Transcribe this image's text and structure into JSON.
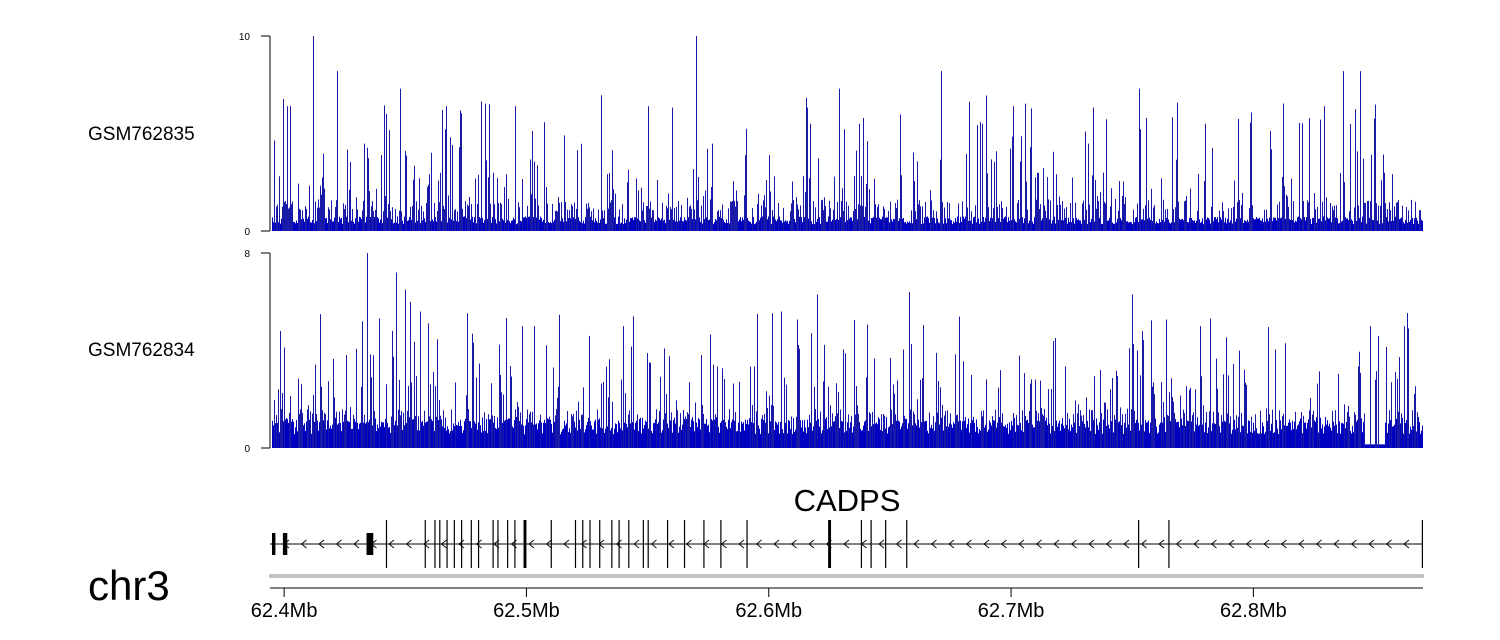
{
  "chart_data": {
    "type": "genome-browser",
    "chromosome": "chr3",
    "region": {
      "start_mb": 62.395,
      "end_mb": 62.87
    },
    "colors": {
      "signal": "#1a1aa8",
      "signal_edge": "#0000c0",
      "axis": "#000000",
      "gene": "#000000"
    },
    "tracks": [
      {
        "name": "GSM762835",
        "ylim": [
          0,
          10
        ],
        "yticks": [
          {
            "value": 10,
            "label": "10"
          },
          {
            "value": 0,
            "label": "0"
          }
        ],
        "seed": 762835,
        "baseline_level": 0.5,
        "peaks": [
          {
            "pos": 62.412,
            "value": 10
          },
          {
            "pos": 62.57,
            "value": 10
          },
          {
            "pos": 62.422,
            "value": 8.2
          },
          {
            "pos": 62.671,
            "value": 8.2
          },
          {
            "pos": 62.837,
            "value": 8.2
          },
          {
            "pos": 62.844,
            "value": 8.2
          },
          {
            "pos": 62.448,
            "value": 7.3
          },
          {
            "pos": 62.753,
            "value": 7.3
          },
          {
            "pos": 62.629,
            "value": 7.3
          },
          {
            "pos": 62.401,
            "value": 6.4
          },
          {
            "pos": 62.467,
            "value": 6.4
          },
          {
            "pos": 62.55,
            "value": 6.4
          },
          {
            "pos": 62.701,
            "value": 6.4
          },
          {
            "pos": 62.829,
            "value": 6.4
          },
          {
            "pos": 62.442,
            "value": 6.0
          },
          {
            "pos": 62.617,
            "value": 5.5
          },
          {
            "pos": 62.688,
            "value": 5.5
          },
          {
            "pos": 62.78,
            "value": 5.5
          }
        ],
        "extra_spikes": 90
      },
      {
        "name": "GSM762834",
        "ylim": [
          0,
          8
        ],
        "yticks": [
          {
            "value": 8,
            "label": "8"
          },
          {
            "value": 0,
            "label": "0"
          }
        ],
        "seed": 762834,
        "baseline_level": 0.8,
        "peaks": [
          {
            "pos": 62.434,
            "value": 8
          },
          {
            "pos": 62.446,
            "value": 7.2
          },
          {
            "pos": 62.45,
            "value": 6.5
          },
          {
            "pos": 62.452,
            "value": 6.0
          },
          {
            "pos": 62.456,
            "value": 5.6
          },
          {
            "pos": 62.432,
            "value": 5.2
          },
          {
            "pos": 62.62,
            "value": 6.3
          },
          {
            "pos": 62.658,
            "value": 6.4
          },
          {
            "pos": 62.75,
            "value": 6.3
          },
          {
            "pos": 62.595,
            "value": 5.5
          },
          {
            "pos": 62.605,
            "value": 5.6
          },
          {
            "pos": 62.54,
            "value": 5.0
          },
          {
            "pos": 62.503,
            "value": 5.0
          },
          {
            "pos": 62.848,
            "value": 5.0
          },
          {
            "pos": 62.862,
            "value": 5.0
          },
          {
            "pos": 62.778,
            "value": 5.0
          }
        ],
        "extra_spikes": 80,
        "dip": {
          "pos": 62.85,
          "width": 0.004
        }
      }
    ],
    "gene": {
      "name": "CADPS",
      "strand": "-",
      "start_mb": 62.395,
      "end_mb": 62.87,
      "exons": [
        {
          "pos": 62.395,
          "width": 0.0014
        },
        {
          "pos": 62.3995,
          "width": 0.0018
        },
        {
          "pos": 62.434,
          "width": 0.0028
        },
        {
          "pos": 62.442,
          "width": 0.0004
        },
        {
          "pos": 62.458,
          "width": 0.0004
        },
        {
          "pos": 62.462,
          "width": 0.0004
        },
        {
          "pos": 62.464,
          "width": 0.0004
        },
        {
          "pos": 62.467,
          "width": 0.0004
        },
        {
          "pos": 62.47,
          "width": 0.0004
        },
        {
          "pos": 62.473,
          "width": 0.0004
        },
        {
          "pos": 62.477,
          "width": 0.0004
        },
        {
          "pos": 62.48,
          "width": 0.0004
        },
        {
          "pos": 62.486,
          "width": 0.0004
        },
        {
          "pos": 62.488,
          "width": 0.0004
        },
        {
          "pos": 62.492,
          "width": 0.0004
        },
        {
          "pos": 62.495,
          "width": 0.0004
        },
        {
          "pos": 62.4988,
          "width": 0.0012
        },
        {
          "pos": 62.51,
          "width": 0.0004
        },
        {
          "pos": 62.52,
          "width": 0.0004
        },
        {
          "pos": 62.523,
          "width": 0.0004
        },
        {
          "pos": 62.526,
          "width": 0.0004
        },
        {
          "pos": 62.53,
          "width": 0.0004
        },
        {
          "pos": 62.535,
          "width": 0.0004
        },
        {
          "pos": 62.538,
          "width": 0.0004
        },
        {
          "pos": 62.542,
          "width": 0.0004
        },
        {
          "pos": 62.548,
          "width": 0.0004
        },
        {
          "pos": 62.55,
          "width": 0.0004
        },
        {
          "pos": 62.558,
          "width": 0.0004
        },
        {
          "pos": 62.565,
          "width": 0.0004
        },
        {
          "pos": 62.573,
          "width": 0.0004
        },
        {
          "pos": 62.58,
          "width": 0.0004
        },
        {
          "pos": 62.5908,
          "width": 0.0004
        },
        {
          "pos": 62.6245,
          "width": 0.0012
        },
        {
          "pos": 62.638,
          "width": 0.0004
        },
        {
          "pos": 62.642,
          "width": 0.0004
        },
        {
          "pos": 62.648,
          "width": 0.0004
        },
        {
          "pos": 62.6567,
          "width": 0.0004
        },
        {
          "pos": 62.7524,
          "width": 0.0004
        },
        {
          "pos": 62.7649,
          "width": 0.0004
        },
        {
          "pos": 62.8695,
          "width": 0.0005
        }
      ]
    },
    "xaxis": {
      "ticks": [
        {
          "value": 62.4,
          "label": "62.4Mb"
        },
        {
          "value": 62.5,
          "label": "62.5Mb"
        },
        {
          "value": 62.6,
          "label": "62.6Mb"
        },
        {
          "value": 62.7,
          "label": "62.7Mb"
        },
        {
          "value": 62.8,
          "label": "62.8Mb"
        }
      ]
    }
  }
}
